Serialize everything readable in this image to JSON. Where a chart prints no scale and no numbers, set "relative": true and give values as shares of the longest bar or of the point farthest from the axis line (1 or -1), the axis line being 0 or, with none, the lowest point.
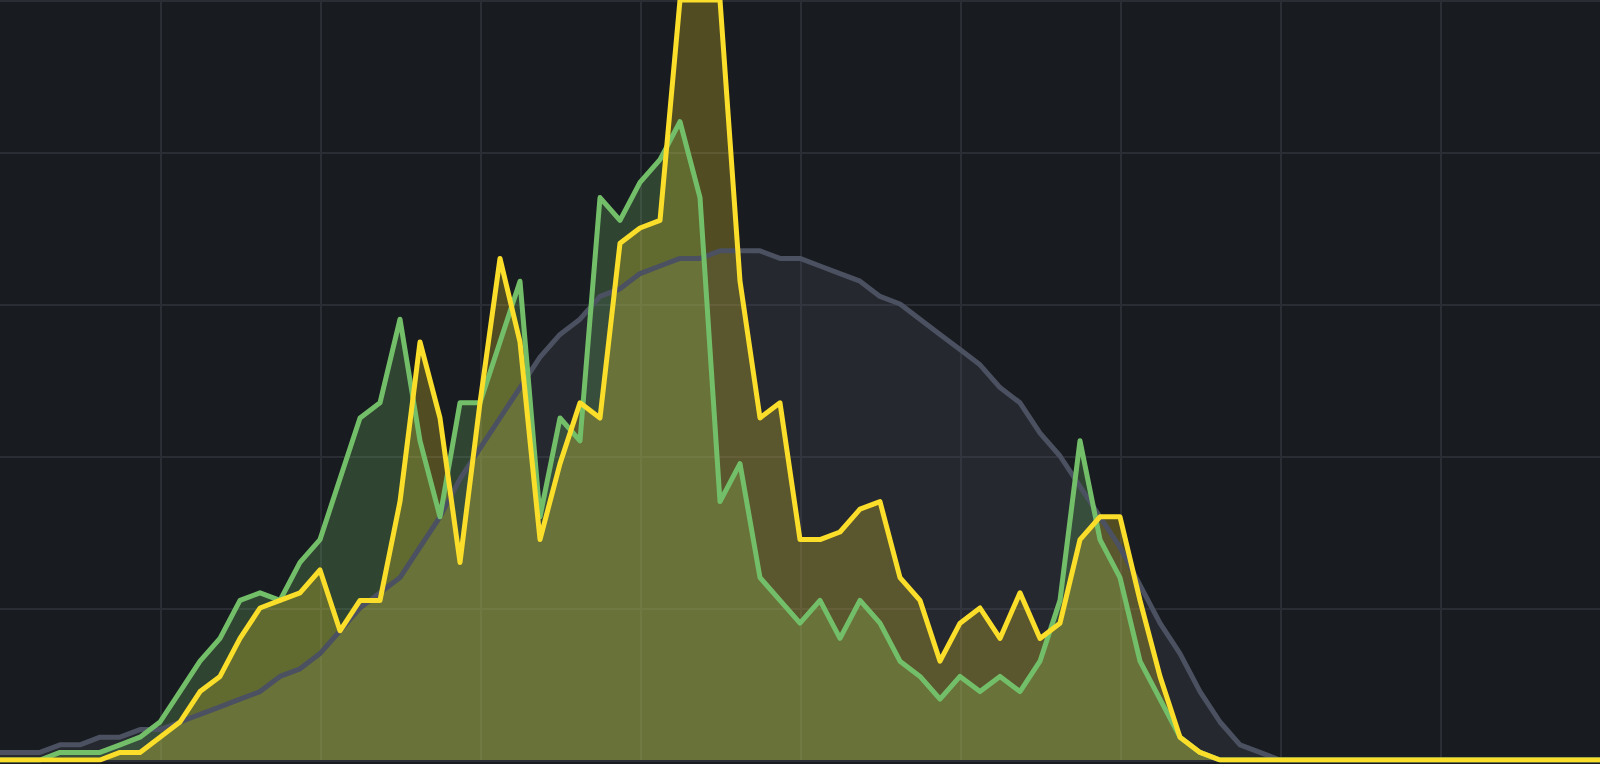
{
  "chart_data": {
    "type": "area",
    "relative": true,
    "grid": true,
    "categories": [
      null,
      null,
      null,
      null,
      null,
      null,
      null,
      null,
      null,
      null,
      null,
      null,
      null,
      null,
      null,
      null,
      null,
      null,
      null,
      null,
      null,
      null,
      null,
      null,
      null,
      null,
      null,
      null,
      null,
      null,
      null,
      null,
      null,
      null,
      null,
      null,
      null,
      null,
      null,
      null,
      null,
      null,
      null,
      null,
      null,
      null,
      null,
      null,
      null,
      null,
      null,
      null,
      null,
      null,
      null,
      null,
      null,
      null,
      null,
      null,
      null,
      null,
      null,
      null,
      null,
      null,
      null,
      null,
      null,
      null,
      null,
      null,
      null,
      null,
      null,
      null,
      null,
      null,
      null,
      null,
      null
    ],
    "series": [
      {
        "color": "#4b5160",
        "values": [
          0.01,
          0.01,
          0.01,
          0.02,
          0.02,
          0.03,
          0.03,
          0.04,
          0.04,
          0.05,
          0.06,
          0.07,
          0.08,
          0.09,
          0.11,
          0.12,
          0.14,
          0.17,
          0.2,
          0.22,
          0.24,
          0.28,
          0.32,
          0.37,
          0.41,
          0.45,
          0.49,
          0.53,
          0.56,
          0.58,
          0.61,
          0.62,
          0.64,
          0.65,
          0.66,
          0.66,
          0.67,
          0.67,
          0.67,
          0.66,
          0.66,
          0.65,
          0.64,
          0.63,
          0.61,
          0.6,
          0.58,
          0.56,
          0.54,
          0.52,
          0.49,
          0.47,
          0.43,
          0.4,
          0.36,
          0.32,
          0.28,
          0.23,
          0.18,
          0.14,
          0.09,
          0.05,
          0.02,
          0.01,
          0,
          0,
          0,
          0,
          0,
          0,
          0,
          0,
          0,
          0,
          0,
          0,
          0,
          0,
          0,
          0,
          0
        ]
      },
      {
        "color": "#73bf69",
        "values": [
          0,
          0,
          0,
          0.01,
          0.01,
          0.01,
          0.02,
          0.03,
          0.05,
          0.09,
          0.13,
          0.16,
          0.21,
          0.22,
          0.21,
          0.26,
          0.29,
          0.37,
          0.45,
          0.47,
          0.58,
          0.42,
          0.32,
          0.47,
          0.47,
          0.55,
          0.63,
          0.32,
          0.45,
          0.42,
          0.74,
          0.71,
          0.76,
          0.79,
          0.84,
          0.74,
          0.34,
          0.39,
          0.24,
          0.21,
          0.18,
          0.21,
          0.16,
          0.21,
          0.18,
          0.13,
          0.11,
          0.08,
          0.11,
          0.09,
          0.11,
          0.09,
          0.13,
          0.21,
          0.42,
          0.29,
          0.24,
          0.13,
          0.08,
          0.03,
          0.01,
          0,
          0,
          0,
          0,
          0,
          0,
          0,
          0,
          0,
          0,
          0,
          0,
          0,
          0,
          0,
          0,
          0,
          0,
          0,
          0
        ]
      },
      {
        "color": "#fade2a",
        "values": [
          0,
          0,
          0,
          0,
          0,
          0,
          0.01,
          0.01,
          0.03,
          0.05,
          0.09,
          0.11,
          0.16,
          0.2,
          0.21,
          0.22,
          0.25,
          0.17,
          0.21,
          0.21,
          0.34,
          0.55,
          0.45,
          0.26,
          0.47,
          0.66,
          0.55,
          0.29,
          0.39,
          0.47,
          0.45,
          0.68,
          0.7,
          0.71,
          1,
          1,
          1,
          0.63,
          0.45,
          0.47,
          0.29,
          0.29,
          0.3,
          0.33,
          0.34,
          0.24,
          0.21,
          0.13,
          0.18,
          0.2,
          0.16,
          0.22,
          0.16,
          0.18,
          0.29,
          0.32,
          0.32,
          0.21,
          0.11,
          0.03,
          0.01,
          0,
          0,
          0,
          0,
          0,
          0,
          0,
          0,
          0,
          0,
          0,
          0,
          0,
          0,
          0,
          0,
          0,
          0,
          0,
          0
        ]
      }
    ]
  }
}
